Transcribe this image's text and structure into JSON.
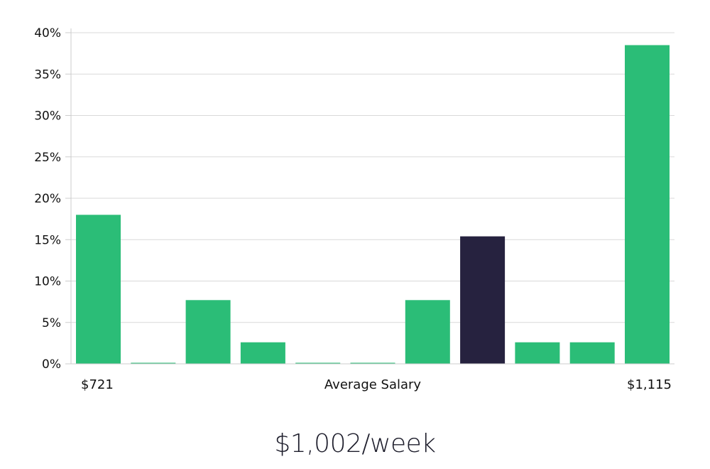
{
  "chart_data": {
    "type": "bar",
    "title": "",
    "xlabel": "Average Salary",
    "ylabel": "",
    "ylim": [
      0,
      40
    ],
    "yticks": [
      "0%",
      "5%",
      "10%",
      "15%",
      "20%",
      "25%",
      "30%",
      "35%",
      "40%"
    ],
    "ytick_values": [
      0,
      5,
      10,
      15,
      20,
      25,
      30,
      35,
      40
    ],
    "x_range_labels": {
      "min": "$721",
      "max": "$1,115"
    },
    "values": [
      18.0,
      0.1,
      7.7,
      2.6,
      0.1,
      0.1,
      7.7,
      15.4,
      2.6,
      2.6,
      38.5
    ],
    "highlight_index": 7,
    "colors": {
      "bar": "#2bbd77",
      "highlight": "#26223f"
    },
    "grid": true
  },
  "footer": {
    "value": "$1,002/week"
  }
}
